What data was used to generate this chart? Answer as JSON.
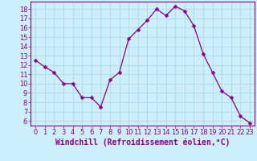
{
  "x": [
    0,
    1,
    2,
    3,
    4,
    5,
    6,
    7,
    8,
    9,
    10,
    11,
    12,
    13,
    14,
    15,
    16,
    17,
    18,
    19,
    20,
    21,
    22,
    23
  ],
  "y": [
    12.5,
    11.8,
    11.2,
    10.0,
    10.0,
    8.5,
    8.5,
    7.5,
    10.4,
    11.2,
    14.8,
    15.8,
    16.8,
    18.0,
    17.3,
    18.3,
    17.8,
    16.2,
    13.2,
    11.2,
    9.2,
    8.5,
    6.5,
    5.8
  ],
  "line_color": "#880088",
  "marker": "D",
  "marker_size": 2.5,
  "bg_color": "#cceeff",
  "grid_color": "#aadddd",
  "xlabel": "Windchill (Refroidissement éolien,°C)",
  "xlim": [
    -0.5,
    23.5
  ],
  "ylim": [
    5.5,
    18.8
  ],
  "yticks": [
    6,
    7,
    8,
    9,
    10,
    11,
    12,
    13,
    14,
    15,
    16,
    17,
    18
  ],
  "xticks": [
    0,
    1,
    2,
    3,
    4,
    5,
    6,
    7,
    8,
    9,
    10,
    11,
    12,
    13,
    14,
    15,
    16,
    17,
    18,
    19,
    20,
    21,
    22,
    23
  ],
  "xlabel_color": "#880088",
  "tick_color": "#880088",
  "axis_color": "#880088",
  "tick_fontsize": 6,
  "xlabel_fontsize": 7
}
